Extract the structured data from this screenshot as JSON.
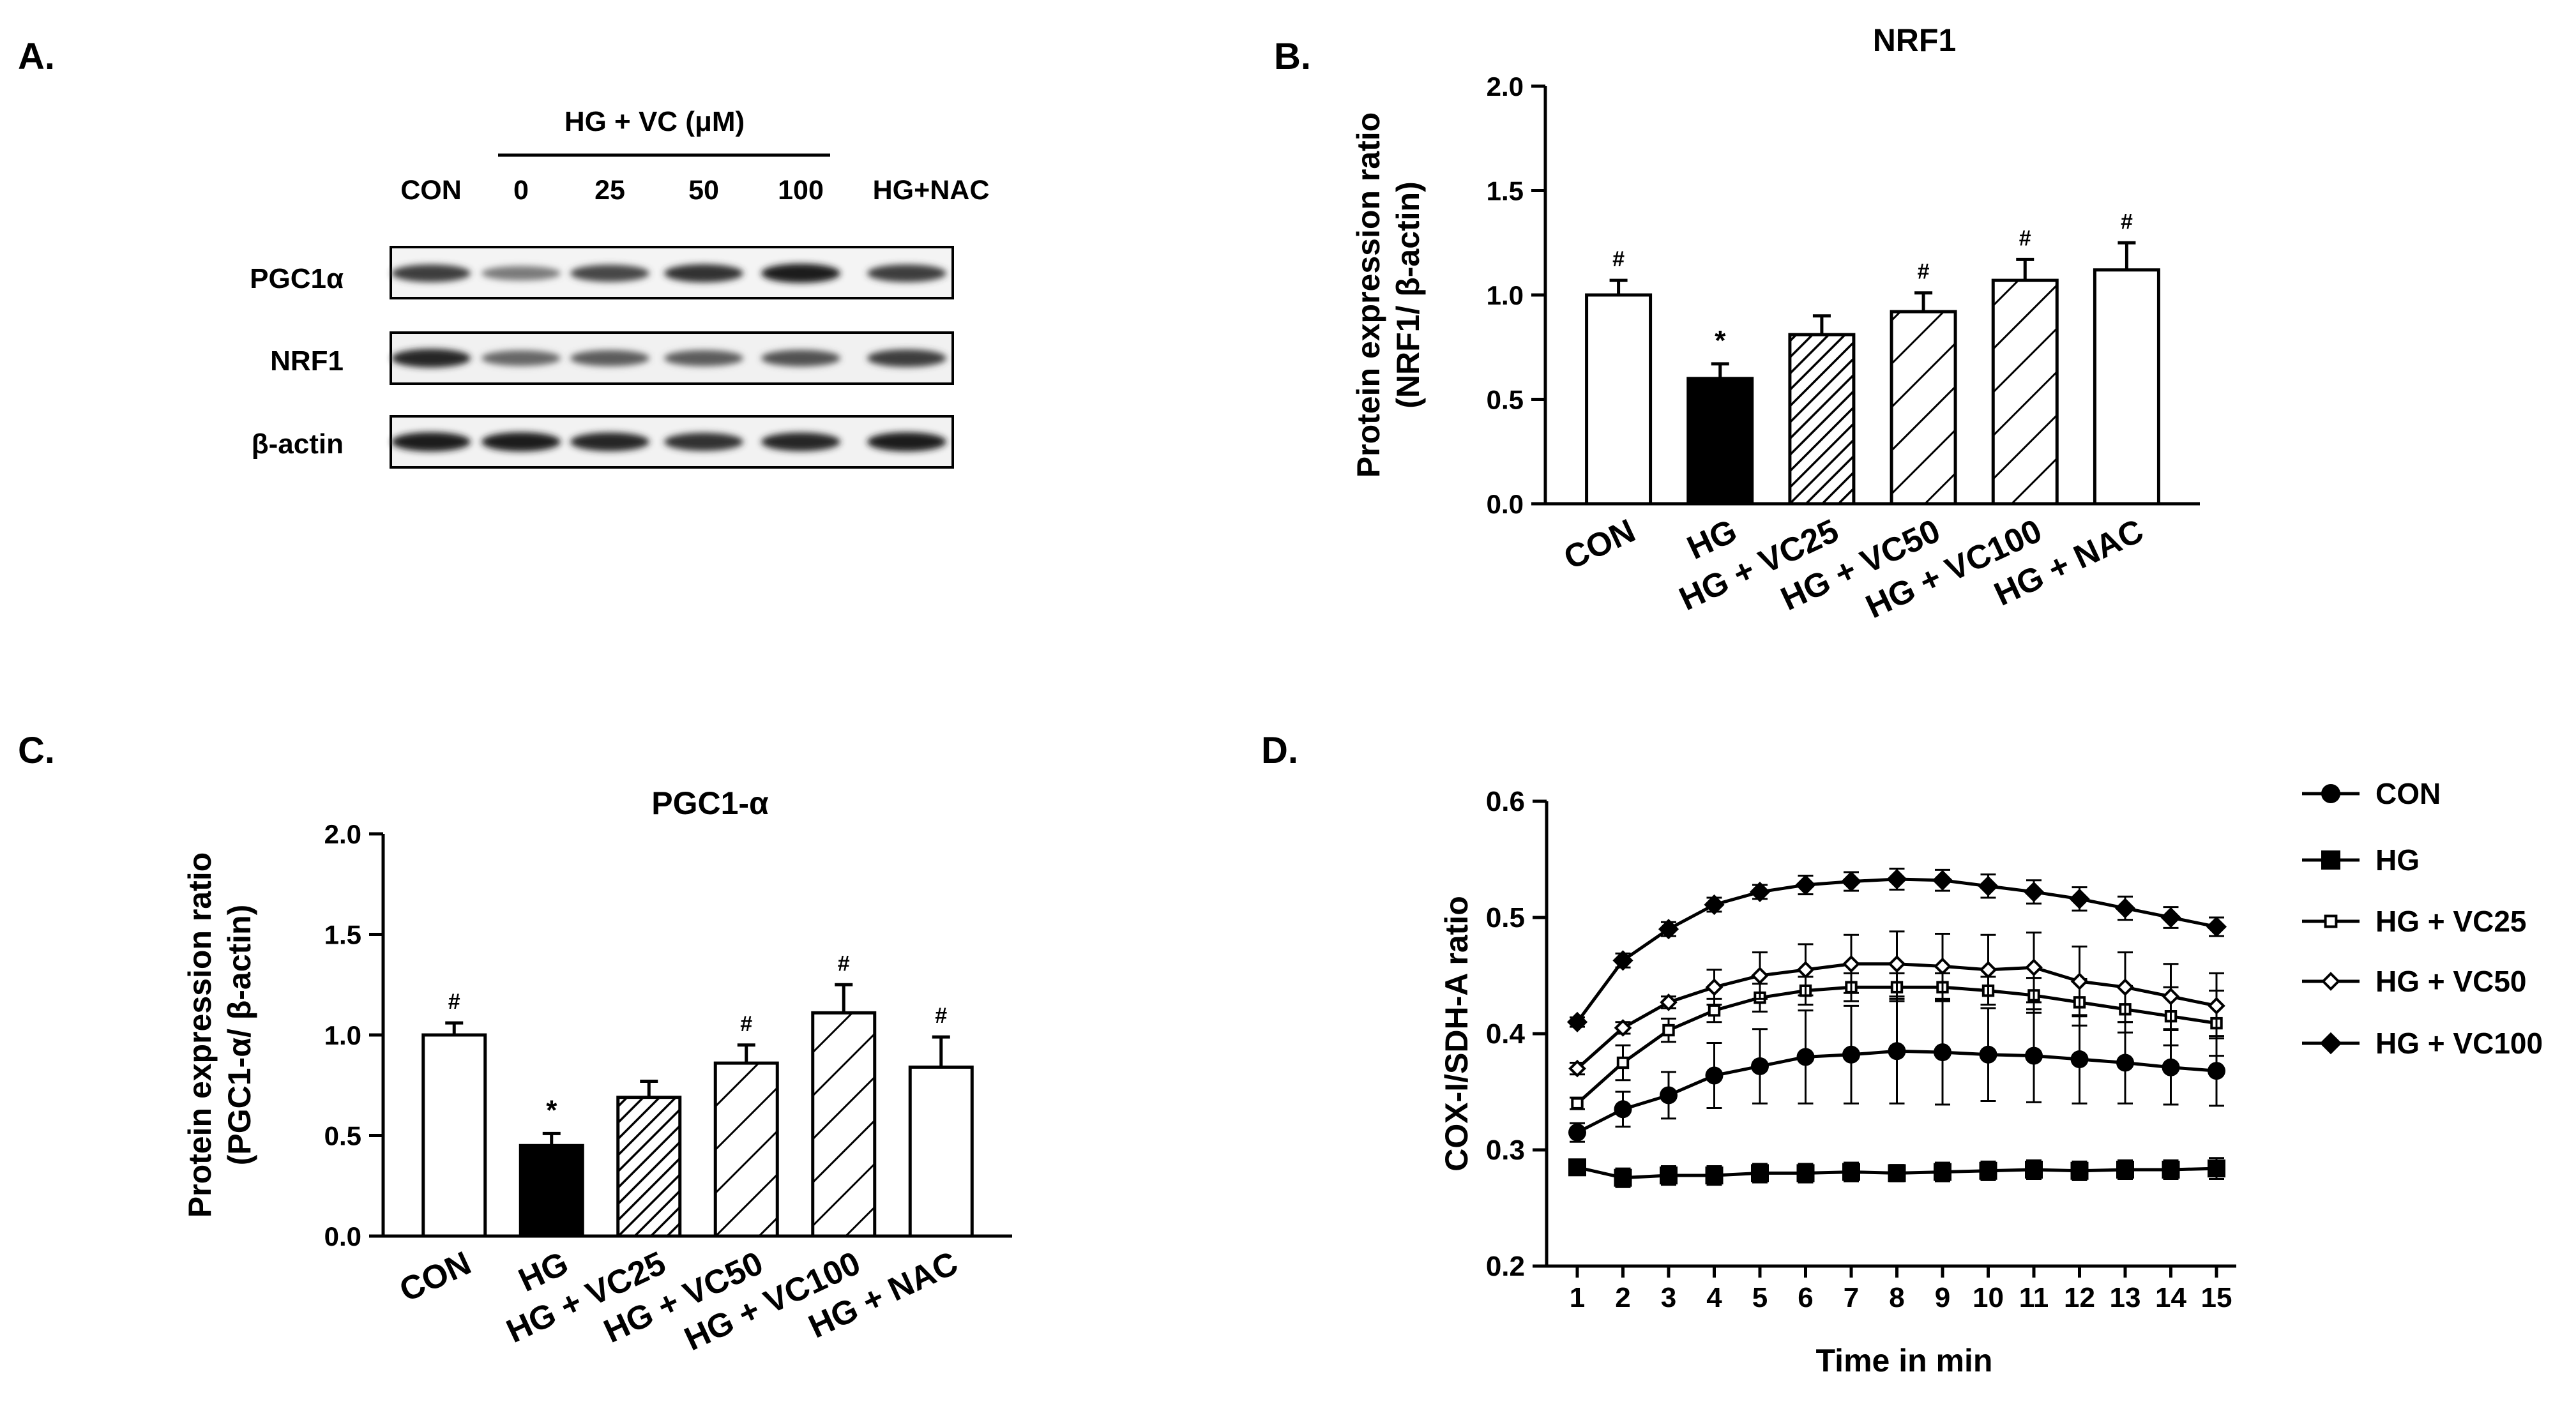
{
  "panels": {
    "A": {
      "letter": "A.",
      "header": "HG + VC (μM)",
      "columns": [
        "CON",
        "0",
        "25",
        "50",
        "100",
        "HG+NAC"
      ],
      "rows": [
        "PGC1α",
        "NRF1",
        "β-actin"
      ],
      "band_intensity": [
        [
          0.85,
          0.55,
          0.8,
          0.9,
          1.0,
          0.85
        ],
        [
          0.95,
          0.65,
          0.7,
          0.7,
          0.75,
          0.85
        ],
        [
          1.0,
          1.0,
          0.95,
          0.9,
          0.95,
          1.0
        ]
      ]
    },
    "B": {
      "letter": "B."
    },
    "C": {
      "letter": "C."
    },
    "D": {
      "letter": "D."
    }
  },
  "colors": {
    "ink": "#000000",
    "paper": "#ffffff"
  },
  "chart_data": [
    {
      "id": "B",
      "type": "bar",
      "title": "NRF1",
      "ylabel": "Protein expression ratio",
      "ylabel2": "(NRF1/ β-actin)",
      "categories": [
        "CON",
        "HG",
        "HG + VC25",
        "HG + VC50",
        "HG + VC100",
        "HG + NAC"
      ],
      "values": [
        1.0,
        0.6,
        0.81,
        0.92,
        1.07,
        1.12
      ],
      "errors": [
        0.07,
        0.07,
        0.09,
        0.09,
        0.1,
        0.13
      ],
      "fills": [
        "white",
        "black",
        "dense-hatch",
        "hatch",
        "hatch",
        "white"
      ],
      "markers": [
        "#",
        "*",
        "",
        "#",
        "#",
        "#"
      ],
      "ylim": [
        0,
        2.0
      ],
      "yticks": [
        "0.0",
        "0.5",
        "1.0",
        "1.5",
        "2.0"
      ]
    },
    {
      "id": "C",
      "type": "bar",
      "title": "PGC1-α",
      "ylabel": "Protein expression ratio",
      "ylabel2": "(PGC1-α/ β-actin)",
      "categories": [
        "CON",
        "HG",
        "HG + VC25",
        "HG + VC50",
        "HG + VC100",
        "HG + NAC"
      ],
      "values": [
        1.0,
        0.45,
        0.69,
        0.86,
        1.11,
        0.84
      ],
      "errors": [
        0.06,
        0.06,
        0.08,
        0.09,
        0.14,
        0.15
      ],
      "fills": [
        "white",
        "black",
        "dense-hatch",
        "hatch",
        "hatch",
        "white"
      ],
      "markers": [
        "#",
        "*",
        "",
        "#",
        "#",
        "#"
      ],
      "ylim": [
        0,
        2.0
      ],
      "yticks": [
        "0.0",
        "0.5",
        "1.0",
        "1.5",
        "2.0"
      ]
    },
    {
      "id": "D",
      "type": "line",
      "xlabel": "Time in min",
      "ylabel": "COX-I/SDH-A ratio",
      "x": [
        1,
        2,
        3,
        4,
        5,
        6,
        7,
        8,
        9,
        10,
        11,
        12,
        13,
        14,
        15
      ],
      "xticks": [
        "1",
        "2",
        "3",
        "4",
        "5",
        "6",
        "7",
        "8",
        "9",
        "10",
        "11",
        "12",
        "13",
        "14",
        "15"
      ],
      "ylim": [
        0.2,
        0.6
      ],
      "yticks": [
        "0.2",
        "0.3",
        "0.4",
        "0.5",
        "0.6"
      ],
      "series": [
        {
          "name": "CON",
          "marker": "filled-circle",
          "values": [
            0.315,
            0.335,
            0.347,
            0.364,
            0.372,
            0.38,
            0.382,
            0.385,
            0.384,
            0.382,
            0.381,
            0.378,
            0.375,
            0.371,
            0.368
          ],
          "errors": [
            0.008,
            0.015,
            0.02,
            0.028,
            0.032,
            0.04,
            0.042,
            0.045,
            0.045,
            0.04,
            0.04,
            0.038,
            0.035,
            0.032,
            0.03
          ]
        },
        {
          "name": "HG",
          "marker": "filled-square",
          "values": [
            0.285,
            0.276,
            0.278,
            0.278,
            0.28,
            0.28,
            0.281,
            0.28,
            0.281,
            0.282,
            0.283,
            0.282,
            0.283,
            0.283,
            0.284
          ],
          "errors": [
            0.004,
            0.008,
            0.008,
            0.008,
            0.008,
            0.008,
            0.008,
            0.007,
            0.008,
            0.008,
            0.008,
            0.008,
            0.008,
            0.008,
            0.009
          ]
        },
        {
          "name": "HG + VC25",
          "marker": "open-square",
          "values": [
            0.34,
            0.375,
            0.403,
            0.42,
            0.431,
            0.437,
            0.44,
            0.44,
            0.44,
            0.437,
            0.433,
            0.427,
            0.421,
            0.415,
            0.409
          ],
          "errors": [
            0.005,
            0.015,
            0.01,
            0.01,
            0.012,
            0.012,
            0.012,
            0.012,
            0.012,
            0.012,
            0.015,
            0.02,
            0.02,
            0.025,
            0.028
          ]
        },
        {
          "name": "HG + VC50",
          "marker": "open-diamond",
          "values": [
            0.37,
            0.405,
            0.427,
            0.44,
            0.45,
            0.455,
            0.46,
            0.46,
            0.458,
            0.455,
            0.457,
            0.445,
            0.44,
            0.432,
            0.424
          ],
          "errors": [
            0.005,
            0.005,
            0.005,
            0.015,
            0.02,
            0.022,
            0.025,
            0.028,
            0.028,
            0.03,
            0.03,
            0.03,
            0.03,
            0.028,
            0.028
          ]
        },
        {
          "name": "HG + VC100",
          "marker": "filled-diamond",
          "values": [
            0.41,
            0.463,
            0.49,
            0.511,
            0.522,
            0.528,
            0.531,
            0.533,
            0.532,
            0.527,
            0.522,
            0.516,
            0.508,
            0.5,
            0.492
          ],
          "errors": [
            0.004,
            0.006,
            0.006,
            0.006,
            0.006,
            0.008,
            0.008,
            0.009,
            0.009,
            0.01,
            0.01,
            0.01,
            0.01,
            0.009,
            0.008
          ]
        }
      ]
    }
  ]
}
